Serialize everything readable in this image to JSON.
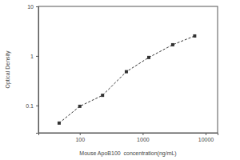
{
  "chart_data": {
    "type": "line",
    "x_label": "Mouse ApoB100  concentration(ng/mL)",
    "y_label": "Optical Density",
    "x": [
      47,
      100,
      230,
      550,
      1250,
      3000,
      6700
    ],
    "values": [
      0.044,
      0.096,
      0.16,
      0.48,
      0.93,
      1.68,
      2.53
    ],
    "color": "#333333",
    "marker": "square",
    "line_style": "dashed",
    "log": true,
    "xlim": [
      22,
      15500
    ],
    "xticks": [
      100,
      1000,
      10000
    ],
    "ylim": [
      0.028,
      10
    ],
    "yticks": [
      0.1,
      1,
      10
    ],
    "grid": false
  }
}
